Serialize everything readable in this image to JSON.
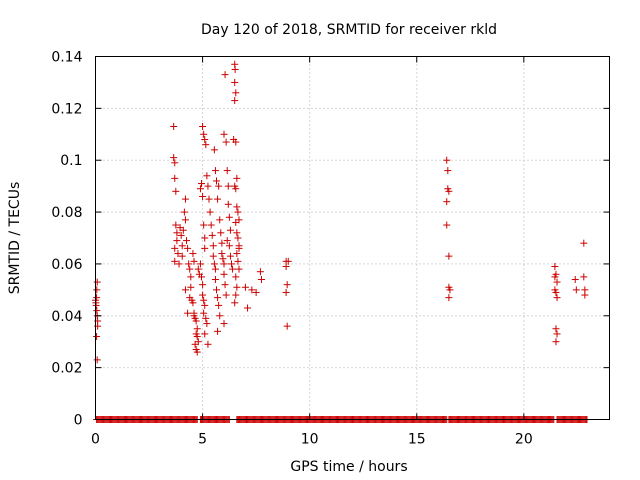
{
  "chart_data": {
    "type": "scatter",
    "title": "Day 120 of 2018, SRMTID for receiver rkld",
    "xlabel": "GPS time / hours",
    "ylabel": "SRMTID / TECUs",
    "xlim": [
      0,
      24
    ],
    "ylim": [
      0,
      0.14
    ],
    "xticks": [
      0,
      5,
      10,
      15,
      20
    ],
    "xtick_labels": [
      "0",
      "5",
      "10",
      "15",
      "20"
    ],
    "yticks": [
      0,
      0.02,
      0.04,
      0.06,
      0.08,
      0.1,
      0.12,
      0.14
    ],
    "ytick_labels": [
      "0",
      "0.02",
      "0.04",
      "0.06",
      "0.08",
      "0.1",
      "0.12",
      "0.14"
    ],
    "grid": true,
    "marker": "+",
    "color": "#cc0000",
    "zero_bands": [
      [
        0.05,
        4.75
      ],
      [
        4.9,
        6.25
      ],
      [
        6.6,
        16.4
      ],
      [
        16.5,
        21.4
      ],
      [
        21.55,
        22.95
      ]
    ],
    "zero_step": 0.05,
    "series": [
      {
        "name": "SRMTID",
        "points": [
          [
            0.0,
            0.046
          ],
          [
            0.02,
            0.045
          ],
          [
            0.03,
            0.044
          ],
          [
            0.05,
            0.047
          ],
          [
            0.06,
            0.05
          ],
          [
            0.08,
            0.053
          ],
          [
            0.08,
            0.04
          ],
          [
            0.1,
            0.038
          ],
          [
            0.1,
            0.036
          ],
          [
            0.05,
            0.032
          ],
          [
            0.08,
            0.023
          ],
          [
            0.06,
            0.042
          ],
          [
            3.65,
            0.113
          ],
          [
            3.65,
            0.101
          ],
          [
            3.7,
            0.099
          ],
          [
            3.7,
            0.093
          ],
          [
            3.75,
            0.088
          ],
          [
            3.75,
            0.075
          ],
          [
            3.8,
            0.072
          ],
          [
            3.8,
            0.069
          ],
          [
            3.7,
            0.066
          ],
          [
            3.85,
            0.064
          ],
          [
            3.7,
            0.061
          ],
          [
            3.9,
            0.06
          ],
          [
            3.95,
            0.074
          ],
          [
            4.0,
            0.071
          ],
          [
            4.05,
            0.067
          ],
          [
            4.05,
            0.063
          ],
          [
            4.1,
            0.073
          ],
          [
            4.15,
            0.08
          ],
          [
            4.2,
            0.085
          ],
          [
            4.2,
            0.077
          ],
          [
            4.25,
            0.069
          ],
          [
            4.3,
            0.066
          ],
          [
            4.35,
            0.06
          ],
          [
            4.4,
            0.058
          ],
          [
            4.45,
            0.055
          ],
          [
            4.45,
            0.051
          ],
          [
            4.4,
            0.047
          ],
          [
            4.5,
            0.046
          ],
          [
            4.55,
            0.045
          ],
          [
            4.6,
            0.041
          ],
          [
            4.6,
            0.04
          ],
          [
            4.65,
            0.039
          ],
          [
            4.7,
            0.038
          ],
          [
            4.75,
            0.035
          ],
          [
            4.7,
            0.033
          ],
          [
            4.75,
            0.032
          ],
          [
            4.8,
            0.03
          ],
          [
            4.65,
            0.029
          ],
          [
            4.7,
            0.027
          ],
          [
            4.75,
            0.026
          ],
          [
            4.2,
            0.05
          ],
          [
            4.3,
            0.041
          ],
          [
            4.55,
            0.064
          ],
          [
            4.6,
            0.061
          ],
          [
            4.8,
            0.058
          ],
          [
            4.85,
            0.056
          ],
          [
            4.9,
            0.06
          ],
          [
            4.95,
            0.055
          ],
          [
            5.0,
            0.052
          ],
          [
            5.0,
            0.048
          ],
          [
            5.05,
            0.046
          ],
          [
            5.1,
            0.044
          ],
          [
            5.05,
            0.041
          ],
          [
            5.15,
            0.039
          ],
          [
            5.2,
            0.037
          ],
          [
            5.1,
            0.033
          ],
          [
            5.25,
            0.029
          ],
          [
            4.9,
            0.089
          ],
          [
            4.95,
            0.091
          ],
          [
            5.0,
            0.086
          ],
          [
            5.05,
            0.075
          ],
          [
            5.1,
            0.07
          ],
          [
            5.1,
            0.066
          ],
          [
            5.0,
            0.113
          ],
          [
            5.05,
            0.11
          ],
          [
            5.1,
            0.108
          ],
          [
            5.15,
            0.106
          ],
          [
            5.2,
            0.094
          ],
          [
            5.25,
            0.09
          ],
          [
            5.3,
            0.085
          ],
          [
            5.35,
            0.08
          ],
          [
            5.4,
            0.075
          ],
          [
            5.45,
            0.071
          ],
          [
            5.5,
            0.067
          ],
          [
            5.5,
            0.063
          ],
          [
            5.55,
            0.06
          ],
          [
            5.6,
            0.058
          ],
          [
            5.6,
            0.054
          ],
          [
            5.65,
            0.05
          ],
          [
            5.7,
            0.047
          ],
          [
            5.75,
            0.044
          ],
          [
            5.8,
            0.04
          ],
          [
            5.7,
            0.034
          ],
          [
            5.55,
            0.104
          ],
          [
            5.6,
            0.096
          ],
          [
            5.65,
            0.092
          ],
          [
            5.7,
            0.085
          ],
          [
            5.75,
            0.09
          ],
          [
            5.8,
            0.077
          ],
          [
            5.85,
            0.072
          ],
          [
            5.9,
            0.068
          ],
          [
            5.9,
            0.064
          ],
          [
            5.95,
            0.062
          ],
          [
            6.0,
            0.06
          ],
          [
            6.0,
            0.056
          ],
          [
            6.05,
            0.052
          ],
          [
            6.1,
            0.048
          ],
          [
            6.0,
            0.037
          ],
          [
            6.05,
            0.133
          ],
          [
            6.0,
            0.11
          ],
          [
            6.1,
            0.107
          ],
          [
            6.15,
            0.096
          ],
          [
            6.2,
            0.09
          ],
          [
            6.2,
            0.083
          ],
          [
            6.25,
            0.078
          ],
          [
            6.3,
            0.073
          ],
          [
            6.15,
            0.069
          ],
          [
            6.25,
            0.067
          ],
          [
            6.3,
            0.063
          ],
          [
            6.35,
            0.06
          ],
          [
            6.4,
            0.058
          ],
          [
            6.5,
            0.137
          ],
          [
            6.52,
            0.135
          ],
          [
            6.5,
            0.13
          ],
          [
            6.55,
            0.126
          ],
          [
            6.5,
            0.123
          ],
          [
            6.45,
            0.108
          ],
          [
            6.55,
            0.107
          ],
          [
            6.5,
            0.09
          ],
          [
            6.55,
            0.089
          ],
          [
            6.6,
            0.093
          ],
          [
            6.6,
            0.082
          ],
          [
            6.65,
            0.08
          ],
          [
            6.7,
            0.077
          ],
          [
            6.55,
            0.076
          ],
          [
            6.6,
            0.072
          ],
          [
            6.65,
            0.07
          ],
          [
            6.7,
            0.067
          ],
          [
            6.6,
            0.064
          ],
          [
            6.65,
            0.061
          ],
          [
            6.7,
            0.058
          ],
          [
            6.55,
            0.055
          ],
          [
            6.6,
            0.051
          ],
          [
            6.55,
            0.048
          ],
          [
            6.5,
            0.045
          ],
          [
            6.7,
            0.066
          ],
          [
            7.0,
            0.051
          ],
          [
            7.1,
            0.043
          ],
          [
            7.3,
            0.05
          ],
          [
            7.5,
            0.049
          ],
          [
            7.7,
            0.057
          ],
          [
            7.75,
            0.054
          ],
          [
            8.9,
            0.061
          ],
          [
            8.9,
            0.059
          ],
          [
            8.95,
            0.052
          ],
          [
            8.9,
            0.049
          ],
          [
            9.0,
            0.061
          ],
          [
            8.95,
            0.036
          ],
          [
            16.4,
            0.1
          ],
          [
            16.45,
            0.096
          ],
          [
            16.45,
            0.089
          ],
          [
            16.5,
            0.088
          ],
          [
            16.4,
            0.084
          ],
          [
            16.4,
            0.075
          ],
          [
            16.5,
            0.063
          ],
          [
            16.5,
            0.051
          ],
          [
            16.55,
            0.05
          ],
          [
            16.5,
            0.047
          ],
          [
            21.45,
            0.059
          ],
          [
            21.5,
            0.056
          ],
          [
            21.45,
            0.055
          ],
          [
            21.55,
            0.053
          ],
          [
            21.45,
            0.05
          ],
          [
            21.5,
            0.049
          ],
          [
            21.55,
            0.047
          ],
          [
            21.5,
            0.035
          ],
          [
            21.55,
            0.033
          ],
          [
            21.5,
            0.03
          ],
          [
            22.4,
            0.054
          ],
          [
            22.45,
            0.05
          ],
          [
            22.8,
            0.055
          ],
          [
            22.85,
            0.05
          ],
          [
            22.85,
            0.048
          ],
          [
            22.8,
            0.068
          ]
        ]
      }
    ]
  }
}
